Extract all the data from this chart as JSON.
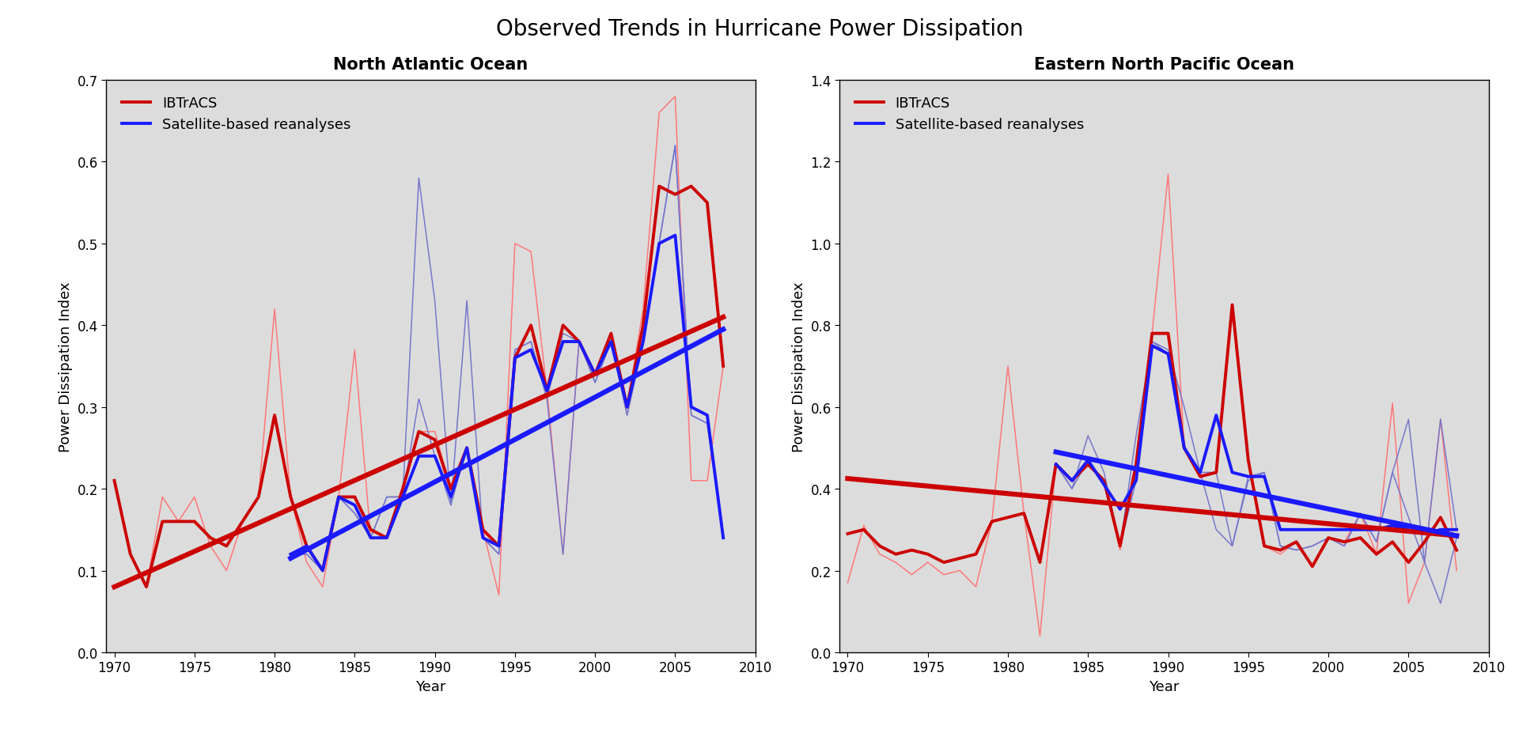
{
  "title": "Observed Trends in Hurricane Power Dissipation",
  "title_fontsize": 20,
  "background_color": "#ffffff",
  "plot_bg_color": "#dcdcdc",
  "left_panel": {
    "title": "North Atlantic Ocean",
    "ylabel": "Power Dissipation Index",
    "xlabel": "Year",
    "ylim": [
      0,
      0.7
    ],
    "yticks": [
      0,
      0.1,
      0.2,
      0.3,
      0.4,
      0.5,
      0.6,
      0.7
    ],
    "xlim": [
      1969.5,
      2010
    ],
    "xticks": [
      1970,
      1975,
      1980,
      1985,
      1990,
      1995,
      2000,
      2005,
      2010
    ],
    "ibtracs_years": [
      1970,
      1971,
      1972,
      1973,
      1974,
      1975,
      1976,
      1977,
      1978,
      1979,
      1980,
      1981,
      1982,
      1983,
      1984,
      1985,
      1986,
      1987,
      1988,
      1989,
      1990,
      1991,
      1992,
      1993,
      1994,
      1995,
      1996,
      1997,
      1998,
      1999,
      2000,
      2001,
      2002,
      2003,
      2004,
      2005,
      2006,
      2007,
      2008
    ],
    "ibtracs_values": [
      0.21,
      0.12,
      0.08,
      0.16,
      0.16,
      0.16,
      0.14,
      0.13,
      0.16,
      0.19,
      0.29,
      0.19,
      0.13,
      0.1,
      0.19,
      0.19,
      0.15,
      0.14,
      0.2,
      0.27,
      0.26,
      0.2,
      0.25,
      0.15,
      0.13,
      0.36,
      0.4,
      0.32,
      0.4,
      0.38,
      0.34,
      0.39,
      0.3,
      0.4,
      0.57,
      0.56,
      0.57,
      0.55,
      0.35
    ],
    "ibtracs_thin1_years": [
      1970,
      1971,
      1972,
      1973,
      1974,
      1975,
      1976,
      1977,
      1978,
      1979,
      1980,
      1981,
      1982,
      1983,
      1984,
      1985,
      1986,
      1987,
      1988,
      1989,
      1990,
      1991,
      1992,
      1993,
      1994,
      1995,
      1996,
      1997,
      1998,
      1999,
      2000,
      2001,
      2002,
      2003,
      2004,
      2005,
      2006,
      2007,
      2008
    ],
    "ibtracs_thin1_values": [
      0.21,
      0.12,
      0.08,
      0.19,
      0.16,
      0.19,
      0.13,
      0.1,
      0.16,
      0.19,
      0.42,
      0.19,
      0.11,
      0.08,
      0.19,
      0.37,
      0.14,
      0.14,
      0.2,
      0.27,
      0.27,
      0.2,
      0.25,
      0.15,
      0.07,
      0.5,
      0.49,
      0.32,
      0.12,
      0.38,
      0.34,
      0.39,
      0.3,
      0.42,
      0.66,
      0.68,
      0.21,
      0.21,
      0.35
    ],
    "sat_years": [
      1981,
      1982,
      1983,
      1984,
      1985,
      1986,
      1987,
      1988,
      1989,
      1990,
      1991,
      1992,
      1993,
      1994,
      1995,
      1996,
      1997,
      1998,
      1999,
      2000,
      2001,
      2002,
      2003,
      2004,
      2005,
      2006,
      2007,
      2008
    ],
    "sat_values": [
      0.12,
      0.13,
      0.1,
      0.19,
      0.18,
      0.14,
      0.14,
      0.19,
      0.24,
      0.24,
      0.19,
      0.25,
      0.14,
      0.13,
      0.36,
      0.37,
      0.32,
      0.38,
      0.38,
      0.34,
      0.38,
      0.3,
      0.38,
      0.5,
      0.51,
      0.3,
      0.29,
      0.14
    ],
    "sat_thin1_years": [
      1981,
      1982,
      1983,
      1984,
      1985,
      1986,
      1987,
      1988,
      1989,
      1990,
      1991,
      1992,
      1993,
      1994,
      1995,
      1996,
      1997,
      1998,
      1999,
      2000,
      2001,
      2002,
      2003,
      2004,
      2005,
      2006,
      2007,
      2008
    ],
    "sat_thin1_values": [
      0.12,
      0.12,
      0.1,
      0.19,
      0.17,
      0.14,
      0.19,
      0.19,
      0.31,
      0.24,
      0.18,
      0.25,
      0.14,
      0.12,
      0.37,
      0.38,
      0.31,
      0.39,
      0.38,
      0.33,
      0.38,
      0.29,
      0.38,
      0.5,
      0.62,
      0.29,
      0.28,
      0.14
    ],
    "sat_thin2_years": [
      1981,
      1982,
      1983,
      1984,
      1985,
      1986,
      1987,
      1988,
      1989,
      1990,
      1991,
      1992,
      1993,
      1994,
      1995,
      1996,
      1997,
      1998,
      1999,
      2000,
      2001,
      2002,
      2003,
      2004,
      2005,
      2006,
      2007,
      2008
    ],
    "sat_thin2_values": [
      0.12,
      0.12,
      0.1,
      0.19,
      0.17,
      0.14,
      0.19,
      0.19,
      0.58,
      0.43,
      0.18,
      0.43,
      0.14,
      0.12,
      0.37,
      0.38,
      0.31,
      0.12,
      0.38,
      0.33,
      0.38,
      0.29,
      0.38,
      0.5,
      0.62,
      0.29,
      0.28,
      0.14
    ],
    "trend_ibtracs_years": [
      1970,
      2008
    ],
    "trend_ibtracs_values": [
      0.08,
      0.41
    ],
    "trend_sat_years": [
      1981,
      2008
    ],
    "trend_sat_values": [
      0.115,
      0.395
    ]
  },
  "right_panel": {
    "title": "Eastern North Pacific Ocean",
    "ylabel": "Power Dissipation Index",
    "xlabel": "Year",
    "ylim": [
      0,
      1.4
    ],
    "yticks": [
      0,
      0.2,
      0.4,
      0.6,
      0.8,
      1.0,
      1.2,
      1.4
    ],
    "xlim": [
      1969.5,
      2010
    ],
    "xticks": [
      1970,
      1975,
      1980,
      1985,
      1990,
      1995,
      2000,
      2005,
      2010
    ],
    "ibtracs_years": [
      1970,
      1971,
      1972,
      1973,
      1974,
      1975,
      1976,
      1977,
      1978,
      1979,
      1980,
      1981,
      1982,
      1983,
      1984,
      1985,
      1986,
      1987,
      1988,
      1989,
      1990,
      1991,
      1992,
      1993,
      1994,
      1995,
      1996,
      1997,
      1998,
      1999,
      2000,
      2001,
      2002,
      2003,
      2004,
      2005,
      2006,
      2007,
      2008
    ],
    "ibtracs_values": [
      0.29,
      0.3,
      0.26,
      0.24,
      0.25,
      0.24,
      0.22,
      0.23,
      0.24,
      0.32,
      0.33,
      0.34,
      0.22,
      0.46,
      0.42,
      0.46,
      0.42,
      0.26,
      0.46,
      0.78,
      0.78,
      0.5,
      0.43,
      0.44,
      0.85,
      0.47,
      0.26,
      0.25,
      0.27,
      0.21,
      0.28,
      0.27,
      0.28,
      0.24,
      0.27,
      0.22,
      0.27,
      0.33,
      0.25
    ],
    "ibtracs_thin1_years": [
      1970,
      1971,
      1972,
      1973,
      1974,
      1975,
      1976,
      1977,
      1978,
      1979,
      1980,
      1981,
      1982,
      1983,
      1984,
      1985,
      1986,
      1987,
      1988,
      1989,
      1990,
      1991,
      1992,
      1993,
      1994,
      1995,
      1996,
      1997,
      1998,
      1999,
      2000,
      2001,
      2002,
      2003,
      2004,
      2005,
      2006,
      2007,
      2008
    ],
    "ibtracs_thin1_values": [
      0.17,
      0.31,
      0.24,
      0.22,
      0.19,
      0.22,
      0.19,
      0.2,
      0.16,
      0.32,
      0.7,
      0.34,
      0.04,
      0.46,
      0.42,
      0.46,
      0.42,
      0.25,
      0.46,
      0.78,
      1.17,
      0.5,
      0.43,
      0.44,
      0.85,
      0.47,
      0.26,
      0.24,
      0.27,
      0.21,
      0.28,
      0.27,
      0.34,
      0.24,
      0.61,
      0.12,
      0.22,
      0.57,
      0.2
    ],
    "sat_years": [
      1983,
      1984,
      1985,
      1986,
      1987,
      1988,
      1989,
      1990,
      1991,
      1992,
      1993,
      1994,
      1995,
      1996,
      1997,
      1998,
      1999,
      2000,
      2001,
      2002,
      2003,
      2004,
      2005,
      2006,
      2007,
      2008
    ],
    "sat_values": [
      0.46,
      0.42,
      0.47,
      0.41,
      0.35,
      0.42,
      0.75,
      0.73,
      0.5,
      0.44,
      0.58,
      0.44,
      0.43,
      0.43,
      0.3,
      0.3,
      0.3,
      0.3,
      0.3,
      0.3,
      0.3,
      0.31,
      0.3,
      0.29,
      0.3,
      0.3
    ],
    "sat_thin1_years": [
      1983,
      1984,
      1985,
      1986,
      1987,
      1988,
      1989,
      1990,
      1991,
      1992,
      1993,
      1994,
      1995,
      1996,
      1997,
      1998,
      1999,
      2000,
      2001,
      2002,
      2003,
      2004,
      2005,
      2006,
      2007,
      2008
    ],
    "sat_thin1_values": [
      0.46,
      0.4,
      0.47,
      0.41,
      0.26,
      0.42,
      0.76,
      0.73,
      0.5,
      0.44,
      0.44,
      0.26,
      0.43,
      0.44,
      0.26,
      0.25,
      0.26,
      0.28,
      0.26,
      0.34,
      0.27,
      0.44,
      0.33,
      0.22,
      0.57,
      0.3
    ],
    "sat_thin2_years": [
      1983,
      1984,
      1985,
      1986,
      1987,
      1988,
      1989,
      1990,
      1991,
      1992,
      1993,
      1994,
      1995,
      1996,
      1997,
      1998,
      1999,
      2000,
      2001,
      2002,
      2003,
      2004,
      2005,
      2006,
      2007,
      2008
    ],
    "sat_thin2_values": [
      0.46,
      0.4,
      0.53,
      0.44,
      0.26,
      0.53,
      0.76,
      0.74,
      0.6,
      0.44,
      0.3,
      0.26,
      0.42,
      0.44,
      0.26,
      0.25,
      0.26,
      0.28,
      0.26,
      0.34,
      0.27,
      0.44,
      0.57,
      0.22,
      0.12,
      0.28
    ],
    "trend_ibtracs_years": [
      1970,
      2008
    ],
    "trend_ibtracs_values": [
      0.425,
      0.285
    ],
    "trend_sat_years": [
      1983,
      2008
    ],
    "trend_sat_values": [
      0.49,
      0.285
    ]
  },
  "ibtracs_color": "#cc0000",
  "sat_color": "#1a1aff",
  "thin_color_red": "#ff7777",
  "thin_color_blue": "#7777cc",
  "trend_lw": 4.5,
  "thick_lw": 2.8,
  "thin_lw": 1.1,
  "legend_fontsize": 13,
  "axis_label_fontsize": 13,
  "tick_fontsize": 12,
  "subtitle_fontsize": 15
}
